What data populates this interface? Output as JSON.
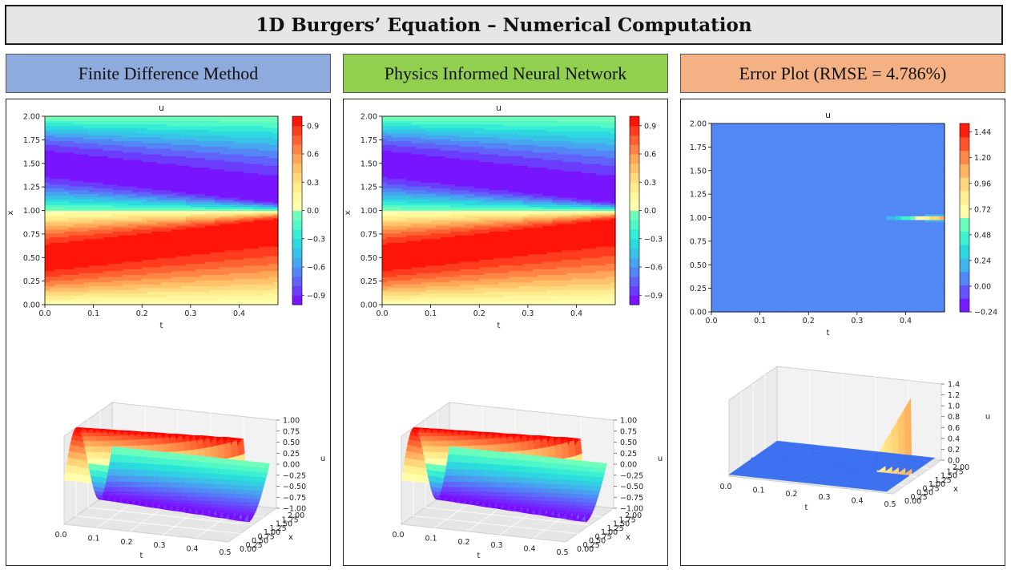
{
  "page": {
    "title": "1D Burgers’ Equation – Numerical Computation"
  },
  "headers": [
    {
      "label": "Finite Difference Method",
      "color": "#8faadc"
    },
    {
      "label": "Physics Informed Neural Network",
      "color": "#92d050"
    },
    {
      "label": "Error Plot (RMSE = 4.786%)",
      "color": "#f4b183"
    }
  ],
  "chart_data": [
    {
      "type": "heatmap",
      "title": "u",
      "xlabel": "t",
      "ylabel": "x",
      "xlim": [
        0,
        0.48
      ],
      "ylim": [
        0,
        2
      ],
      "xticks": [
        "0.0",
        "0.1",
        "0.2",
        "0.3",
        "0.4"
      ],
      "yticks": [
        "0.00",
        "0.25",
        "0.50",
        "0.75",
        "1.00",
        "1.25",
        "1.50",
        "1.75",
        "2.00"
      ],
      "colorbar_ticks": [
        "0.9",
        "0.6",
        "0.3",
        "0.0",
        "−0.3",
        "−0.6",
        "−0.9"
      ],
      "colormap": "rainbow"
    },
    {
      "type": "surface",
      "zlabel": "u",
      "xlabel": "t",
      "ylabel": "x",
      "xticks": [
        "0.0",
        "0.1",
        "0.2",
        "0.3",
        "0.4",
        "0.5"
      ],
      "yticks": [
        "0.00",
        "0.25",
        "0.50",
        "0.75",
        "1.00",
        "1.25",
        "1.50",
        "1.75",
        "2.00"
      ],
      "zticks": [
        "1.00",
        "0.75",
        "0.50",
        "0.25",
        "0.00",
        "−0.25",
        "−0.50",
        "−0.75",
        "−1.00"
      ]
    },
    {
      "type": "heatmap",
      "title": "u",
      "xlabel": "t",
      "ylabel": "x",
      "xlim": [
        0,
        0.48
      ],
      "ylim": [
        0,
        2
      ],
      "xticks": [
        "0.0",
        "0.1",
        "0.2",
        "0.3",
        "0.4"
      ],
      "yticks": [
        "0.00",
        "0.25",
        "0.50",
        "0.75",
        "1.00",
        "1.25",
        "1.50",
        "1.75",
        "2.00"
      ],
      "colorbar_ticks": [
        "0.9",
        "0.6",
        "0.3",
        "0.0",
        "−0.3",
        "−0.6",
        "−0.9"
      ],
      "colormap": "rainbow"
    },
    {
      "type": "surface",
      "zlabel": "u",
      "xlabel": "t",
      "ylabel": "x",
      "xticks": [
        "0.0",
        "0.1",
        "0.2",
        "0.3",
        "0.4",
        "0.5"
      ],
      "yticks": [
        "0.00",
        "0.25",
        "0.50",
        "0.75",
        "1.00",
        "1.25",
        "1.50",
        "1.75",
        "2.00"
      ],
      "zticks": [
        "1.00",
        "0.75",
        "0.50",
        "0.25",
        "0.00",
        "−0.25",
        "−0.50",
        "−0.75",
        "−1.00"
      ]
    },
    {
      "type": "heatmap",
      "title": "u",
      "xlabel": "t",
      "ylabel": "x",
      "xlim": [
        0,
        0.48
      ],
      "ylim": [
        0,
        2
      ],
      "xticks": [
        "0.0",
        "0.1",
        "0.2",
        "0.3",
        "0.4"
      ],
      "yticks": [
        "0.00",
        "0.25",
        "0.50",
        "0.75",
        "1.00",
        "1.25",
        "1.50",
        "1.75",
        "2.00"
      ],
      "colorbar_ticks": [
        "1.44",
        "1.20",
        "0.96",
        "0.72",
        "0.48",
        "0.24",
        "0.00",
        "−0.24"
      ],
      "colormap": "rainbow"
    },
    {
      "type": "surface",
      "zlabel": "u",
      "xlabel": "t",
      "ylabel": "x",
      "xticks": [
        "0.0",
        "0.1",
        "0.2",
        "0.3",
        "0.4",
        "0.5"
      ],
      "yticks": [
        "0.00",
        "0.25",
        "0.50",
        "0.75",
        "1.00",
        "1.25",
        "1.50",
        "1.75",
        "2.00"
      ],
      "zticks": [
        "1.4",
        "1.2",
        "1.0",
        "0.8",
        "0.6",
        "0.4",
        "0.2",
        "0.0"
      ]
    }
  ]
}
